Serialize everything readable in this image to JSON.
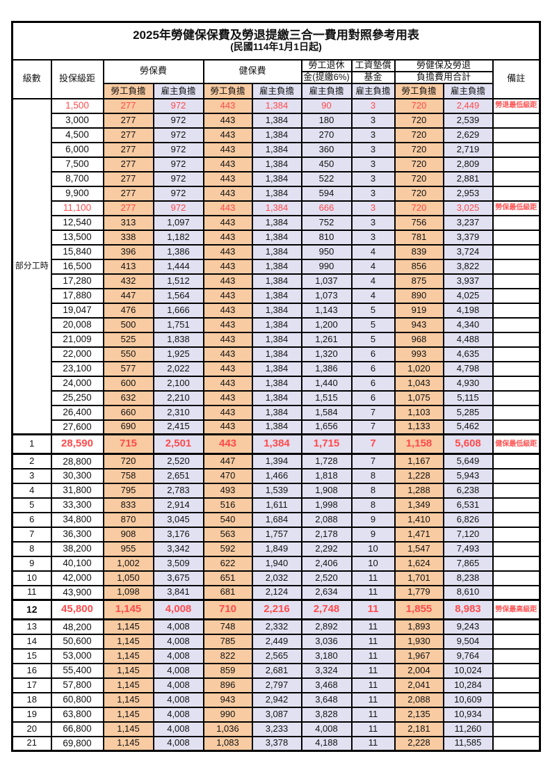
{
  "title": "2025年勞健保保費及勞退提繳三合一費用對照參考用表",
  "subtitle": "(民國114年1月1日起)",
  "columns": {
    "level": "級數",
    "bracket": "投保級距",
    "labor_insurance": "勞保費",
    "health_insurance": "健保費",
    "pension_line1": "勞工退休",
    "pension_line2": "金(提繳6%)",
    "wage_fund_line1": "工資墊償",
    "wage_fund_line2": "基金",
    "total_line1": "勞健保及勞退",
    "total_line2": "負擔費用合計",
    "remarks": "備註",
    "employee_share": "勞工負擔",
    "employer_share": "雇主負擔"
  },
  "part_time": {
    "label": "部分工時",
    "rowspan": 23
  },
  "colors": {
    "employee_bg": "#F8CBA2",
    "employer_bg": "#E2E1F2",
    "highlight_red": "#FF4A4A",
    "note_red": "#FF5555",
    "border": "#000000"
  },
  "rows": [
    {
      "level": "",
      "salary": "1,500",
      "values": [
        "277",
        "972",
        "443",
        "1,384",
        "90",
        "3",
        "720",
        "2,449"
      ],
      "note": "勞退最低級距",
      "highlight": true,
      "emphasis": false,
      "bold_level": false
    },
    {
      "level": "",
      "salary": "3,000",
      "values": [
        "277",
        "972",
        "443",
        "1,384",
        "180",
        "3",
        "720",
        "2,539"
      ],
      "note": "",
      "highlight": false,
      "emphasis": false,
      "bold_level": false
    },
    {
      "level": "",
      "salary": "4,500",
      "values": [
        "277",
        "972",
        "443",
        "1,384",
        "270",
        "3",
        "720",
        "2,629"
      ],
      "note": "",
      "highlight": false,
      "emphasis": false,
      "bold_level": false
    },
    {
      "level": "",
      "salary": "6,000",
      "values": [
        "277",
        "972",
        "443",
        "1,384",
        "360",
        "3",
        "720",
        "2,719"
      ],
      "note": "",
      "highlight": false,
      "emphasis": false,
      "bold_level": false
    },
    {
      "level": "",
      "salary": "7,500",
      "values": [
        "277",
        "972",
        "443",
        "1,384",
        "450",
        "3",
        "720",
        "2,809"
      ],
      "note": "",
      "highlight": false,
      "emphasis": false,
      "bold_level": false
    },
    {
      "level": "",
      "salary": "8,700",
      "values": [
        "277",
        "972",
        "443",
        "1,384",
        "522",
        "3",
        "720",
        "2,881"
      ],
      "note": "",
      "highlight": false,
      "emphasis": false,
      "bold_level": false
    },
    {
      "level": "",
      "salary": "9,900",
      "values": [
        "277",
        "972",
        "443",
        "1,384",
        "594",
        "3",
        "720",
        "2,953"
      ],
      "note": "",
      "highlight": false,
      "emphasis": false,
      "bold_level": false
    },
    {
      "level": "",
      "salary": "11,100",
      "values": [
        "277",
        "972",
        "443",
        "1,384",
        "666",
        "3",
        "720",
        "3,025"
      ],
      "note": "勞保最低級距",
      "highlight": true,
      "emphasis": false,
      "bold_level": false
    },
    {
      "level": "",
      "salary": "12,540",
      "values": [
        "313",
        "1,097",
        "443",
        "1,384",
        "752",
        "3",
        "756",
        "3,237"
      ],
      "note": "",
      "highlight": false,
      "emphasis": false,
      "bold_level": false
    },
    {
      "level": "",
      "salary": "13,500",
      "values": [
        "338",
        "1,182",
        "443",
        "1,384",
        "810",
        "3",
        "781",
        "3,379"
      ],
      "note": "",
      "highlight": false,
      "emphasis": false,
      "bold_level": false
    },
    {
      "level": "",
      "salary": "15,840",
      "values": [
        "396",
        "1,386",
        "443",
        "1,384",
        "950",
        "4",
        "839",
        "3,724"
      ],
      "note": "",
      "highlight": false,
      "emphasis": false,
      "bold_level": false
    },
    {
      "level": "",
      "salary": "16,500",
      "values": [
        "413",
        "1,444",
        "443",
        "1,384",
        "990",
        "4",
        "856",
        "3,822"
      ],
      "note": "",
      "highlight": false,
      "emphasis": false,
      "bold_level": false
    },
    {
      "level": "",
      "salary": "17,280",
      "values": [
        "432",
        "1,512",
        "443",
        "1,384",
        "1,037",
        "4",
        "875",
        "3,937"
      ],
      "note": "",
      "highlight": false,
      "emphasis": false,
      "bold_level": false
    },
    {
      "level": "",
      "salary": "17,880",
      "values": [
        "447",
        "1,564",
        "443",
        "1,384",
        "1,073",
        "4",
        "890",
        "4,025"
      ],
      "note": "",
      "highlight": false,
      "emphasis": false,
      "bold_level": false
    },
    {
      "level": "",
      "salary": "19,047",
      "values": [
        "476",
        "1,666",
        "443",
        "1,384",
        "1,143",
        "5",
        "919",
        "4,198"
      ],
      "note": "",
      "highlight": false,
      "emphasis": false,
      "bold_level": false
    },
    {
      "level": "",
      "salary": "20,008",
      "values": [
        "500",
        "1,751",
        "443",
        "1,384",
        "1,200",
        "5",
        "943",
        "4,340"
      ],
      "note": "",
      "highlight": false,
      "emphasis": false,
      "bold_level": false
    },
    {
      "level": "",
      "salary": "21,009",
      "values": [
        "525",
        "1,838",
        "443",
        "1,384",
        "1,261",
        "5",
        "968",
        "4,488"
      ],
      "note": "",
      "highlight": false,
      "emphasis": false,
      "bold_level": false
    },
    {
      "level": "",
      "salary": "22,000",
      "values": [
        "550",
        "1,925",
        "443",
        "1,384",
        "1,320",
        "6",
        "993",
        "4,635"
      ],
      "note": "",
      "highlight": false,
      "emphasis": false,
      "bold_level": false
    },
    {
      "level": "",
      "salary": "23,100",
      "values": [
        "577",
        "2,022",
        "443",
        "1,384",
        "1,386",
        "6",
        "1,020",
        "4,798"
      ],
      "note": "",
      "highlight": false,
      "emphasis": false,
      "bold_level": false
    },
    {
      "level": "",
      "salary": "24,000",
      "values": [
        "600",
        "2,100",
        "443",
        "1,384",
        "1,440",
        "6",
        "1,043",
        "4,930"
      ],
      "note": "",
      "highlight": false,
      "emphasis": false,
      "bold_level": false
    },
    {
      "level": "",
      "salary": "25,250",
      "values": [
        "632",
        "2,210",
        "443",
        "1,384",
        "1,515",
        "6",
        "1,075",
        "5,115"
      ],
      "note": "",
      "highlight": false,
      "emphasis": false,
      "bold_level": false
    },
    {
      "level": "",
      "salary": "26,400",
      "values": [
        "660",
        "2,310",
        "443",
        "1,384",
        "1,584",
        "7",
        "1,103",
        "5,285"
      ],
      "note": "",
      "highlight": false,
      "emphasis": false,
      "bold_level": false
    },
    {
      "level": "",
      "salary": "27,600",
      "values": [
        "690",
        "2,415",
        "443",
        "1,384",
        "1,656",
        "7",
        "1,133",
        "5,462"
      ],
      "note": "",
      "highlight": false,
      "emphasis": false,
      "bold_level": false
    },
    {
      "level": "1",
      "salary": "28,590",
      "values": [
        "715",
        "2,501",
        "443",
        "1,384",
        "1,715",
        "7",
        "1,158",
        "5,608"
      ],
      "note": "健保最低級距",
      "highlight": true,
      "emphasis": true,
      "bold_level": false
    },
    {
      "level": "2",
      "salary": "28,800",
      "values": [
        "720",
        "2,520",
        "447",
        "1,394",
        "1,728",
        "7",
        "1,167",
        "5,649"
      ],
      "note": "",
      "highlight": false,
      "emphasis": false,
      "bold_level": false
    },
    {
      "level": "3",
      "salary": "30,300",
      "values": [
        "758",
        "2,651",
        "470",
        "1,466",
        "1,818",
        "8",
        "1,228",
        "5,943"
      ],
      "note": "",
      "highlight": false,
      "emphasis": false,
      "bold_level": false
    },
    {
      "level": "4",
      "salary": "31,800",
      "values": [
        "795",
        "2,783",
        "493",
        "1,539",
        "1,908",
        "8",
        "1,288",
        "6,238"
      ],
      "note": "",
      "highlight": false,
      "emphasis": false,
      "bold_level": false
    },
    {
      "level": "5",
      "salary": "33,300",
      "values": [
        "833",
        "2,914",
        "516",
        "1,611",
        "1,998",
        "8",
        "1,349",
        "6,531"
      ],
      "note": "",
      "highlight": false,
      "emphasis": false,
      "bold_level": false
    },
    {
      "level": "6",
      "salary": "34,800",
      "values": [
        "870",
        "3,045",
        "540",
        "1,684",
        "2,088",
        "9",
        "1,410",
        "6,826"
      ],
      "note": "",
      "highlight": false,
      "emphasis": false,
      "bold_level": false
    },
    {
      "level": "7",
      "salary": "36,300",
      "values": [
        "908",
        "3,176",
        "563",
        "1,757",
        "2,178",
        "9",
        "1,471",
        "7,120"
      ],
      "note": "",
      "highlight": false,
      "emphasis": false,
      "bold_level": false
    },
    {
      "level": "8",
      "salary": "38,200",
      "values": [
        "955",
        "3,342",
        "592",
        "1,849",
        "2,292",
        "10",
        "1,547",
        "7,493"
      ],
      "note": "",
      "highlight": false,
      "emphasis": false,
      "bold_level": false
    },
    {
      "level": "9",
      "salary": "40,100",
      "values": [
        "1,002",
        "3,509",
        "622",
        "1,940",
        "2,406",
        "10",
        "1,624",
        "7,865"
      ],
      "note": "",
      "highlight": false,
      "emphasis": false,
      "bold_level": false
    },
    {
      "level": "10",
      "salary": "42,000",
      "values": [
        "1,050",
        "3,675",
        "651",
        "2,032",
        "2,520",
        "11",
        "1,701",
        "8,238"
      ],
      "note": "",
      "highlight": false,
      "emphasis": false,
      "bold_level": false
    },
    {
      "level": "11",
      "salary": "43,900",
      "values": [
        "1,098",
        "3,841",
        "681",
        "2,124",
        "2,634",
        "11",
        "1,779",
        "8,610"
      ],
      "note": "",
      "highlight": false,
      "emphasis": false,
      "bold_level": false
    },
    {
      "level": "12",
      "salary": "45,800",
      "values": [
        "1,145",
        "4,008",
        "710",
        "2,216",
        "2,748",
        "11",
        "1,855",
        "8,983"
      ],
      "note": "勞保最高級距",
      "highlight": true,
      "emphasis": true,
      "bold_level": true
    },
    {
      "level": "13",
      "salary": "48,200",
      "values": [
        "1,145",
        "4,008",
        "748",
        "2,332",
        "2,892",
        "11",
        "1,893",
        "9,243"
      ],
      "note": "",
      "highlight": false,
      "emphasis": false,
      "bold_level": false
    },
    {
      "level": "14",
      "salary": "50,600",
      "values": [
        "1,145",
        "4,008",
        "785",
        "2,449",
        "3,036",
        "11",
        "1,930",
        "9,504"
      ],
      "note": "",
      "highlight": false,
      "emphasis": false,
      "bold_level": false
    },
    {
      "level": "15",
      "salary": "53,000",
      "values": [
        "1,145",
        "4,008",
        "822",
        "2,565",
        "3,180",
        "11",
        "1,967",
        "9,764"
      ],
      "note": "",
      "highlight": false,
      "emphasis": false,
      "bold_level": false
    },
    {
      "level": "16",
      "salary": "55,400",
      "values": [
        "1,145",
        "4,008",
        "859",
        "2,681",
        "3,324",
        "11",
        "2,004",
        "10,024"
      ],
      "note": "",
      "highlight": false,
      "emphasis": false,
      "bold_level": false
    },
    {
      "level": "17",
      "salary": "57,800",
      "values": [
        "1,145",
        "4,008",
        "896",
        "2,797",
        "3,468",
        "11",
        "2,041",
        "10,284"
      ],
      "note": "",
      "highlight": false,
      "emphasis": false,
      "bold_level": false
    },
    {
      "level": "18",
      "salary": "60,800",
      "values": [
        "1,145",
        "4,008",
        "943",
        "2,942",
        "3,648",
        "11",
        "2,088",
        "10,609"
      ],
      "note": "",
      "highlight": false,
      "emphasis": false,
      "bold_level": false
    },
    {
      "level": "19",
      "salary": "63,800",
      "values": [
        "1,145",
        "4,008",
        "990",
        "3,087",
        "3,828",
        "11",
        "2,135",
        "10,934"
      ],
      "note": "",
      "highlight": false,
      "emphasis": false,
      "bold_level": false
    },
    {
      "level": "20",
      "salary": "66,800",
      "values": [
        "1,145",
        "4,008",
        "1,036",
        "3,233",
        "4,008",
        "11",
        "2,181",
        "11,260"
      ],
      "note": "",
      "highlight": false,
      "emphasis": false,
      "bold_level": false
    },
    {
      "level": "21",
      "salary": "69,800",
      "values": [
        "1,145",
        "4,008",
        "1,083",
        "3,378",
        "4,188",
        "11",
        "2,228",
        "11,585"
      ],
      "note": "",
      "highlight": false,
      "emphasis": false,
      "bold_level": false
    }
  ]
}
